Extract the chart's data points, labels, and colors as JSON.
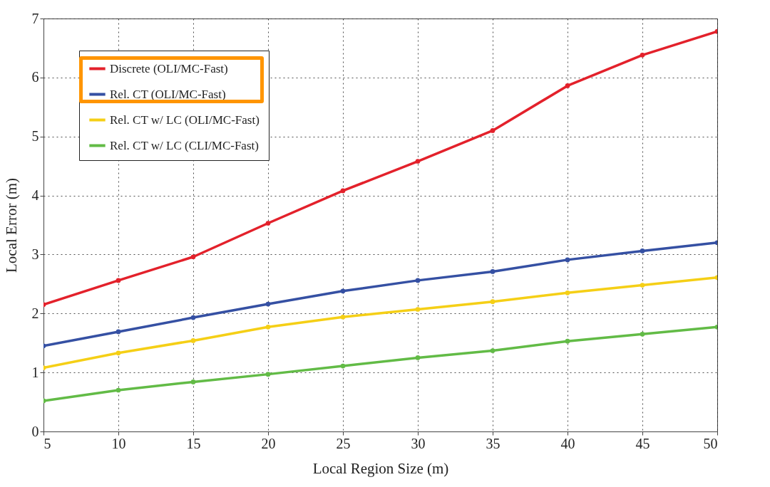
{
  "chart_data": {
    "type": "line",
    "xlabel": "Local Region Size (m)",
    "ylabel": "Local Error (m)",
    "x": [
      5,
      10,
      15,
      20,
      25,
      30,
      35,
      40,
      45,
      50
    ],
    "xlim": [
      5,
      50
    ],
    "xticks": [
      5,
      10,
      15,
      20,
      25,
      30,
      35,
      40,
      45,
      50
    ],
    "ylim": [
      0,
      7
    ],
    "yticks": [
      0,
      1,
      2,
      3,
      4,
      5,
      6,
      7
    ],
    "grid": true,
    "legend": "top left",
    "marker": "circle",
    "line_style": "solid",
    "series": [
      {
        "name": "Discrete (OLI/MC-Fast)",
        "color": "#e3212b",
        "values": [
          2.15,
          2.56,
          2.96,
          3.53,
          4.08,
          4.58,
          5.1,
          5.86,
          6.38,
          6.78
        ]
      },
      {
        "name": "Rel. CT (OLI/MC-Fast)",
        "color": "#3550a3",
        "values": [
          1.45,
          1.69,
          1.93,
          2.16,
          2.38,
          2.56,
          2.71,
          2.91,
          3.06,
          3.2
        ]
      },
      {
        "name": "Rel. CT w/ LC (OLI/MC-Fast)",
        "color": "#f5cf16",
        "values": [
          1.08,
          1.33,
          1.54,
          1.77,
          1.94,
          2.07,
          2.2,
          2.35,
          2.48,
          2.61
        ]
      },
      {
        "name": "Rel. CT w/ LC (CLI/MC-Fast)",
        "color": "#62bb46",
        "values": [
          0.52,
          0.7,
          0.84,
          0.97,
          1.11,
          1.25,
          1.37,
          1.53,
          1.65,
          1.77
        ]
      }
    ]
  }
}
